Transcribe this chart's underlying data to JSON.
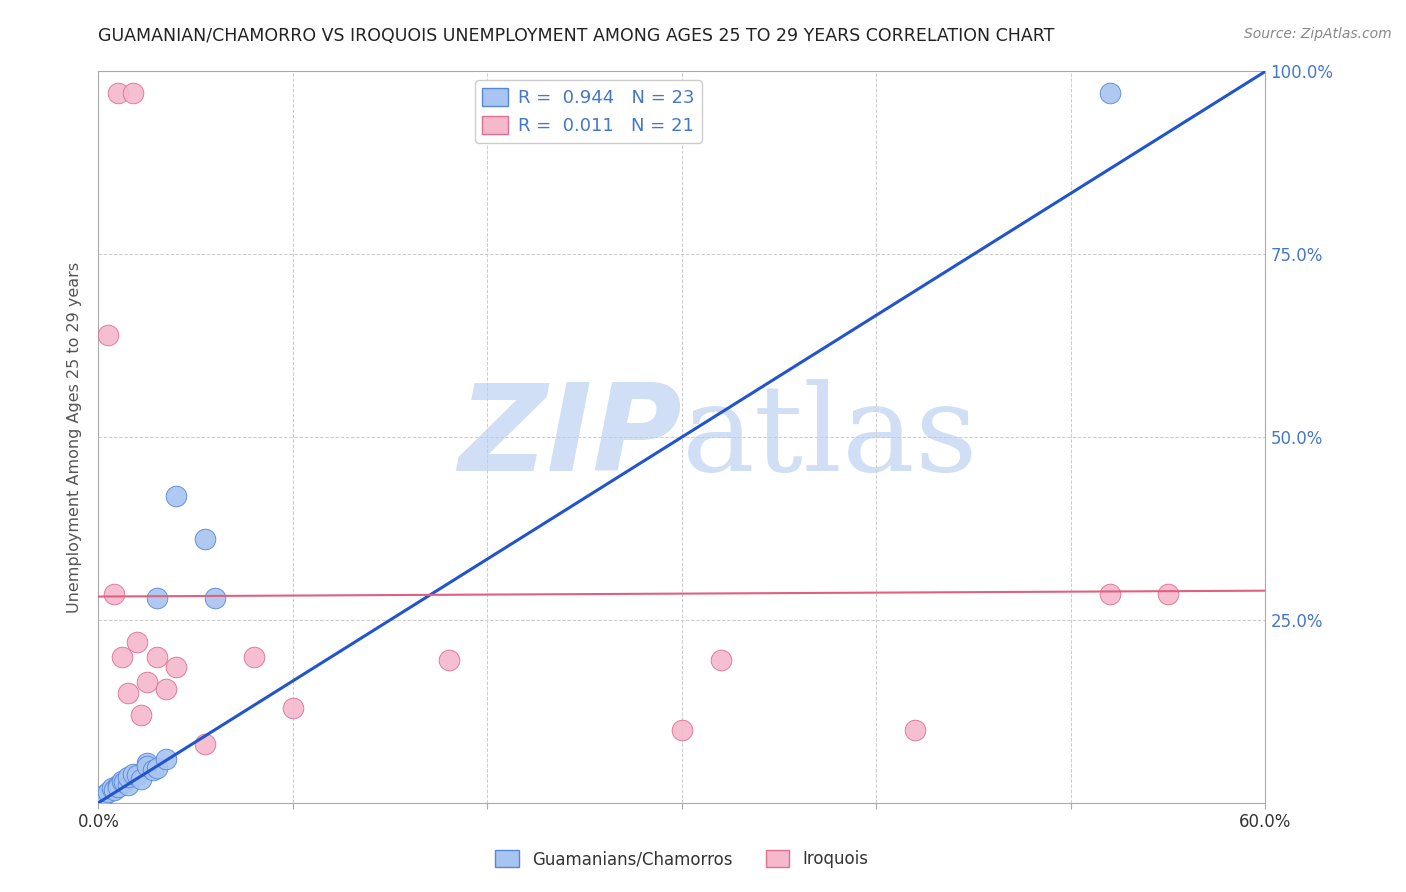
{
  "title": "GUAMANIAN/CHAMORRO VS IROQUOIS UNEMPLOYMENT AMONG AGES 25 TO 29 YEARS CORRELATION CHART",
  "source": "Source: ZipAtlas.com",
  "ylabel": "Unemployment Among Ages 25 to 29 years",
  "xlim": [
    0.0,
    0.6
  ],
  "ylim": [
    0.0,
    1.0
  ],
  "xticks": [
    0.0,
    0.1,
    0.2,
    0.3,
    0.4,
    0.5,
    0.6
  ],
  "xticklabels": [
    "0.0%",
    "",
    "",
    "",
    "",
    "",
    "60.0%"
  ],
  "yticks": [
    0.0,
    0.25,
    0.5,
    0.75,
    1.0
  ],
  "yticklabels_right": [
    "",
    "25.0%",
    "50.0%",
    "75.0%",
    "100.0%"
  ],
  "blue_R": "0.944",
  "blue_N": "23",
  "pink_R": "0.011",
  "pink_N": "21",
  "blue_fill_color": "#a8c4f0",
  "blue_edge_color": "#5588dd",
  "pink_fill_color": "#f5b8cc",
  "pink_edge_color": "#e07090",
  "blue_line_color": "#2255cc",
  "pink_line_color": "#e06080",
  "axis_color": "#aaaaaa",
  "grid_color": "#cccccc",
  "tick_label_color": "#4477cc",
  "ylabel_color": "#555555",
  "title_color": "#222222",
  "source_color": "#888888",
  "watermark_color": "#d0dff5",
  "blue_scatter_x": [
    0.003,
    0.005,
    0.007,
    0.008,
    0.01,
    0.01,
    0.012,
    0.013,
    0.015,
    0.015,
    0.018,
    0.02,
    0.022,
    0.025,
    0.025,
    0.028,
    0.03,
    0.03,
    0.035,
    0.04,
    0.055,
    0.06,
    0.52
  ],
  "blue_scatter_y": [
    0.01,
    0.015,
    0.02,
    0.018,
    0.025,
    0.022,
    0.03,
    0.028,
    0.025,
    0.035,
    0.04,
    0.038,
    0.032,
    0.055,
    0.05,
    0.045,
    0.048,
    0.28,
    0.06,
    0.42,
    0.36,
    0.28,
    0.97
  ],
  "pink_scatter_x": [
    0.01,
    0.018,
    0.005,
    0.008,
    0.012,
    0.015,
    0.02,
    0.022,
    0.025,
    0.03,
    0.035,
    0.04,
    0.055,
    0.08,
    0.1,
    0.18,
    0.3,
    0.32,
    0.42,
    0.52,
    0.55
  ],
  "pink_scatter_y": [
    0.97,
    0.97,
    0.64,
    0.285,
    0.2,
    0.15,
    0.22,
    0.12,
    0.165,
    0.2,
    0.155,
    0.185,
    0.08,
    0.2,
    0.13,
    0.195,
    0.1,
    0.195,
    0.1,
    0.285,
    0.285
  ],
  "blue_line_x0": 0.0,
  "blue_line_y0": 0.0,
  "blue_line_x1": 0.6,
  "blue_line_y1": 1.0,
  "pink_line_x0": 0.0,
  "pink_line_y0": 0.282,
  "pink_line_x1": 0.6,
  "pink_line_y1": 0.29
}
